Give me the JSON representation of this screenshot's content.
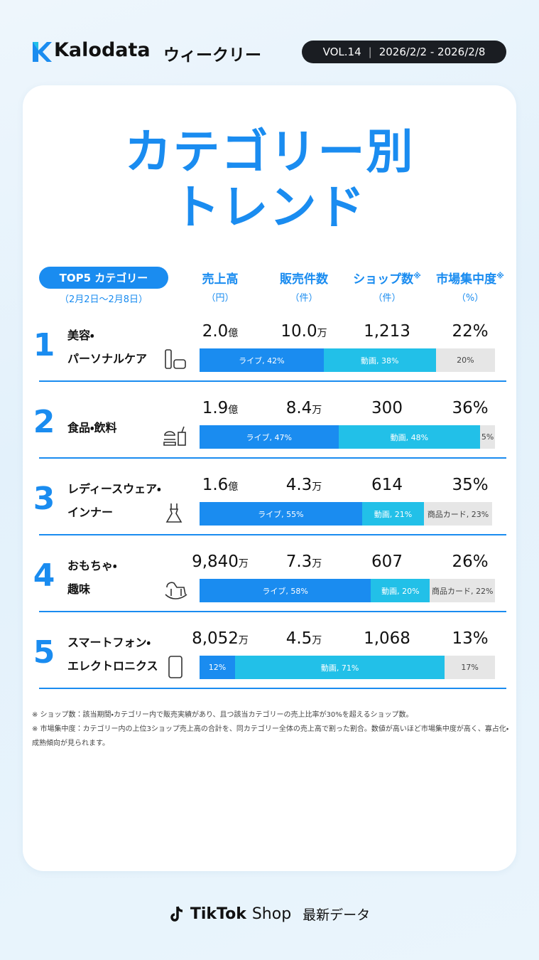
{
  "header": {
    "brand": "Kalodata",
    "edition": "ウィークリー",
    "vol": "VOL.14",
    "period": "2026/2/2 - 2026/2/8"
  },
  "title": [
    "カテゴリー別",
    "トレンド"
  ],
  "table": {
    "badge": "TOP5 カテゴリー",
    "period": "（2月2日〜2月8日）",
    "columns": [
      {
        "name": "売上高",
        "unit": "（円）"
      },
      {
        "name": "販売件数",
        "unit": "（件）"
      },
      {
        "name": "ショップ数",
        "note": "※",
        "unit": "（件）"
      },
      {
        "name": "市場集中度",
        "note": "※",
        "unit": "（%）"
      }
    ],
    "rows": [
      {
        "rank": "1",
        "name": [
          "美容・",
          "パーソナルケア"
        ],
        "sales": {
          "value": "2.0",
          "unit": "億"
        },
        "units": {
          "value": "10.0",
          "unit": "万"
        },
        "shops": "1,213",
        "concentration": "22%",
        "segments": [
          {
            "label": "ライブ, 42%",
            "value": 42,
            "color": "#1a8cf0"
          },
          {
            "label": "動画, 38%",
            "value": 38,
            "color": "#22c0e8"
          },
          {
            "label": "20%",
            "value": 20,
            "color": "#e6e6e6"
          }
        ]
      },
      {
        "rank": "2",
        "name": [
          "食品・飲料"
        ],
        "sales": {
          "value": "1.9",
          "unit": "億"
        },
        "units": {
          "value": "8.4",
          "unit": "万"
        },
        "shops": "300",
        "concentration": "36%",
        "segments": [
          {
            "label": "ライブ, 47%",
            "value": 47,
            "color": "#1a8cf0"
          },
          {
            "label": "動画, 48%",
            "value": 48,
            "color": "#22c0e8"
          },
          {
            "label": "5%",
            "value": 5,
            "color": "#e6e6e6"
          }
        ]
      },
      {
        "rank": "3",
        "name": [
          "レディースウェア・",
          "インナー"
        ],
        "sales": {
          "value": "1.6",
          "unit": "億"
        },
        "units": {
          "value": "4.3",
          "unit": "万"
        },
        "shops": "614",
        "concentration": "35%",
        "segments": [
          {
            "label": "ライブ, 55%",
            "value": 55,
            "color": "#1a8cf0"
          },
          {
            "label": "動画, 21%",
            "value": 21,
            "color": "#22c0e8"
          },
          {
            "label": "商品カード, 23%",
            "value": 23,
            "color": "#e6e6e6"
          }
        ]
      },
      {
        "rank": "4",
        "name": [
          "おもちゃ・",
          "趣味"
        ],
        "sales": {
          "value": "9,840",
          "unit": "万"
        },
        "units": {
          "value": "7.3",
          "unit": "万"
        },
        "shops": "607",
        "concentration": "26%",
        "segments": [
          {
            "label": "ライブ, 58%",
            "value": 58,
            "color": "#1a8cf0"
          },
          {
            "label": "動画, 20%",
            "value": 20,
            "color": "#22c0e8"
          },
          {
            "label": "商品カード, 22%",
            "value": 22,
            "color": "#e6e6e6"
          }
        ]
      },
      {
        "rank": "5",
        "name": [
          "スマートフォン・",
          "エレクトロニクス"
        ],
        "sales": {
          "value": "8,052",
          "unit": "万"
        },
        "units": {
          "value": "4.5",
          "unit": "万"
        },
        "shops": "1,068",
        "concentration": "13%",
        "segments": [
          {
            "label": "12%",
            "value": 12,
            "color": "#1a8cf0"
          },
          {
            "label": "動画, 71%",
            "value": 71,
            "color": "#22c0e8"
          },
          {
            "label": "17%",
            "value": 17,
            "color": "#e6e6e6"
          }
        ]
      }
    ]
  },
  "footnotes": [
    "※ ショップ数：該当期間・カテゴリー内で販売実績があり、且つ該当カテゴリーの売上比率が30%を超えるショップ数。",
    "※ 市場集中度：カテゴリー内の上位3ショップ売上高の合計を、同カテゴリー全体の売上高で割った割合。数値が高いほど市場集中度が高く、寡占化・成熟傾向が見られます。"
  ],
  "footer": {
    "brand": "TikTok",
    "shop": "Shop",
    "tag": "最新データ"
  }
}
